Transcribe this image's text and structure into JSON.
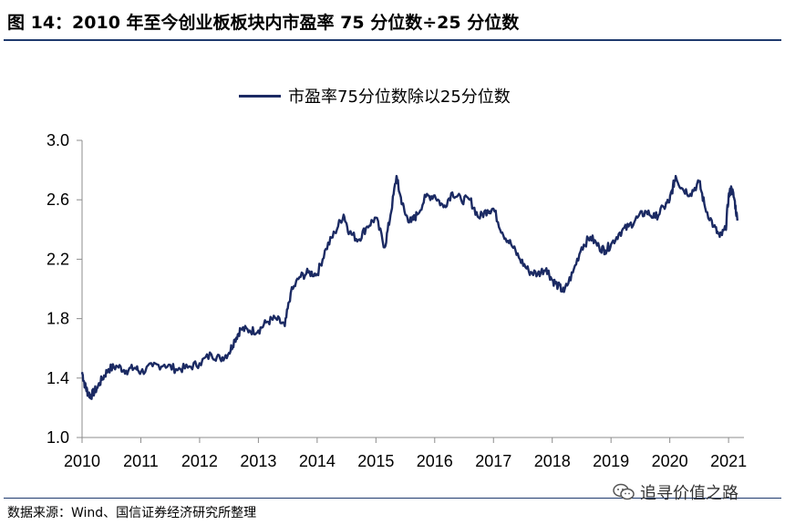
{
  "header": {
    "title": "图 14：2010 年至今创业板板块内市盈率 75 分位数÷25 分位数"
  },
  "footer": {
    "source": "数据来源：Wind、国信证券经济研究所整理"
  },
  "watermark": {
    "text": "追寻价值之路",
    "icon": "wechat-icon"
  },
  "colors": {
    "series": "#1b2a63",
    "rule": "#1f3a6e",
    "axis": "#8c8c8c"
  },
  "chart_data": {
    "type": "line",
    "title": "",
    "xlabel": "",
    "ylabel": "",
    "ylim": [
      1.0,
      3.0
    ],
    "y_ticks": [
      "1.0",
      "1.4",
      "1.8",
      "2.2",
      "2.6",
      "3.0"
    ],
    "x_ticks": [
      "2010",
      "2011",
      "2012",
      "2013",
      "2014",
      "2015",
      "2016",
      "2017",
      "2018",
      "2019",
      "2020",
      "2021"
    ],
    "xlim": [
      2010.0,
      2021.2
    ],
    "legend_position": "top-center",
    "grid": false,
    "series": [
      {
        "name": "市盈率75分位数除以25分位数",
        "x": [
          2010.0,
          2010.05,
          2010.1,
          2010.15,
          2010.25,
          2010.35,
          2010.45,
          2010.6,
          2010.75,
          2010.9,
          2011.0,
          2011.2,
          2011.4,
          2011.6,
          2011.8,
          2012.0,
          2012.2,
          2012.35,
          2012.5,
          2012.6,
          2012.7,
          2012.85,
          2013.0,
          2013.15,
          2013.3,
          2013.45,
          2013.55,
          2013.7,
          2013.85,
          2014.0,
          2014.15,
          2014.3,
          2014.45,
          2014.55,
          2014.7,
          2014.85,
          2015.0,
          2015.15,
          2015.25,
          2015.35,
          2015.4,
          2015.5,
          2015.6,
          2015.7,
          2015.85,
          2016.0,
          2016.15,
          2016.3,
          2016.45,
          2016.6,
          2016.75,
          2016.9,
          2017.0,
          2017.15,
          2017.3,
          2017.45,
          2017.6,
          2017.75,
          2017.9,
          2018.0,
          2018.1,
          2018.2,
          2018.35,
          2018.5,
          2018.65,
          2018.8,
          2018.9,
          2019.0,
          2019.15,
          2019.3,
          2019.45,
          2019.6,
          2019.75,
          2019.9,
          2020.0,
          2020.05,
          2020.1,
          2020.2,
          2020.35,
          2020.5,
          2020.6,
          2020.75,
          2020.85,
          2020.95,
          2021.0,
          2021.05,
          2021.1,
          2021.15
        ],
        "values": [
          1.44,
          1.35,
          1.3,
          1.28,
          1.33,
          1.4,
          1.46,
          1.48,
          1.45,
          1.47,
          1.44,
          1.48,
          1.49,
          1.46,
          1.47,
          1.5,
          1.56,
          1.53,
          1.57,
          1.66,
          1.73,
          1.72,
          1.72,
          1.78,
          1.8,
          1.75,
          1.97,
          2.08,
          2.11,
          2.1,
          2.27,
          2.38,
          2.5,
          2.38,
          2.33,
          2.42,
          2.48,
          2.28,
          2.5,
          2.76,
          2.65,
          2.5,
          2.45,
          2.5,
          2.62,
          2.63,
          2.55,
          2.65,
          2.6,
          2.6,
          2.48,
          2.53,
          2.54,
          2.38,
          2.3,
          2.2,
          2.12,
          2.1,
          2.14,
          2.06,
          2.02,
          1.98,
          2.11,
          2.28,
          2.35,
          2.28,
          2.26,
          2.3,
          2.38,
          2.42,
          2.48,
          2.52,
          2.48,
          2.55,
          2.6,
          2.68,
          2.76,
          2.68,
          2.64,
          2.72,
          2.55,
          2.42,
          2.35,
          2.4,
          2.62,
          2.68,
          2.6,
          2.46
        ]
      }
    ]
  }
}
